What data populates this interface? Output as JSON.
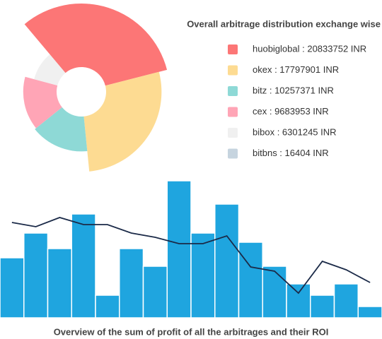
{
  "chart_data": [
    {
      "type": "pie",
      "title": "Overall arbitrage distribution exchange wise",
      "categories": [
        "huobiglobal : 20833752 INR",
        "okex : 17797901 INR",
        "bitz : 10257371 INR",
        "cex : 9683953 INR",
        "bibox : 6301245 INR",
        "bitbns : 16404 INR"
      ],
      "values": [
        20833752,
        17797901,
        10257371,
        9683953,
        6301245,
        16404
      ],
      "colors": [
        "#fc7676",
        "#fddb92",
        "#8ed9d6",
        "#ffa5b6",
        "#f0f0f0",
        "#c6d4df"
      ],
      "rose": true
    },
    {
      "type": "bar",
      "title": "Overview of the sum of profit of all the arbitrages and their ROI",
      "ylim": [
        0,
        200
      ],
      "series": [
        {
          "type": "bar",
          "color": "#1fa5df",
          "values": [
            85,
            120,
            98,
            147,
            32,
            98,
            73,
            194,
            120,
            161,
            107,
            73,
            48,
            32,
            48,
            16
          ]
        },
        {
          "type": "line",
          "color": "#1b2a48",
          "values": [
            135,
            129,
            142,
            132,
            132,
            120,
            114,
            105,
            105,
            116,
            72,
            66,
            35,
            80,
            68,
            50
          ]
        }
      ]
    }
  ]
}
